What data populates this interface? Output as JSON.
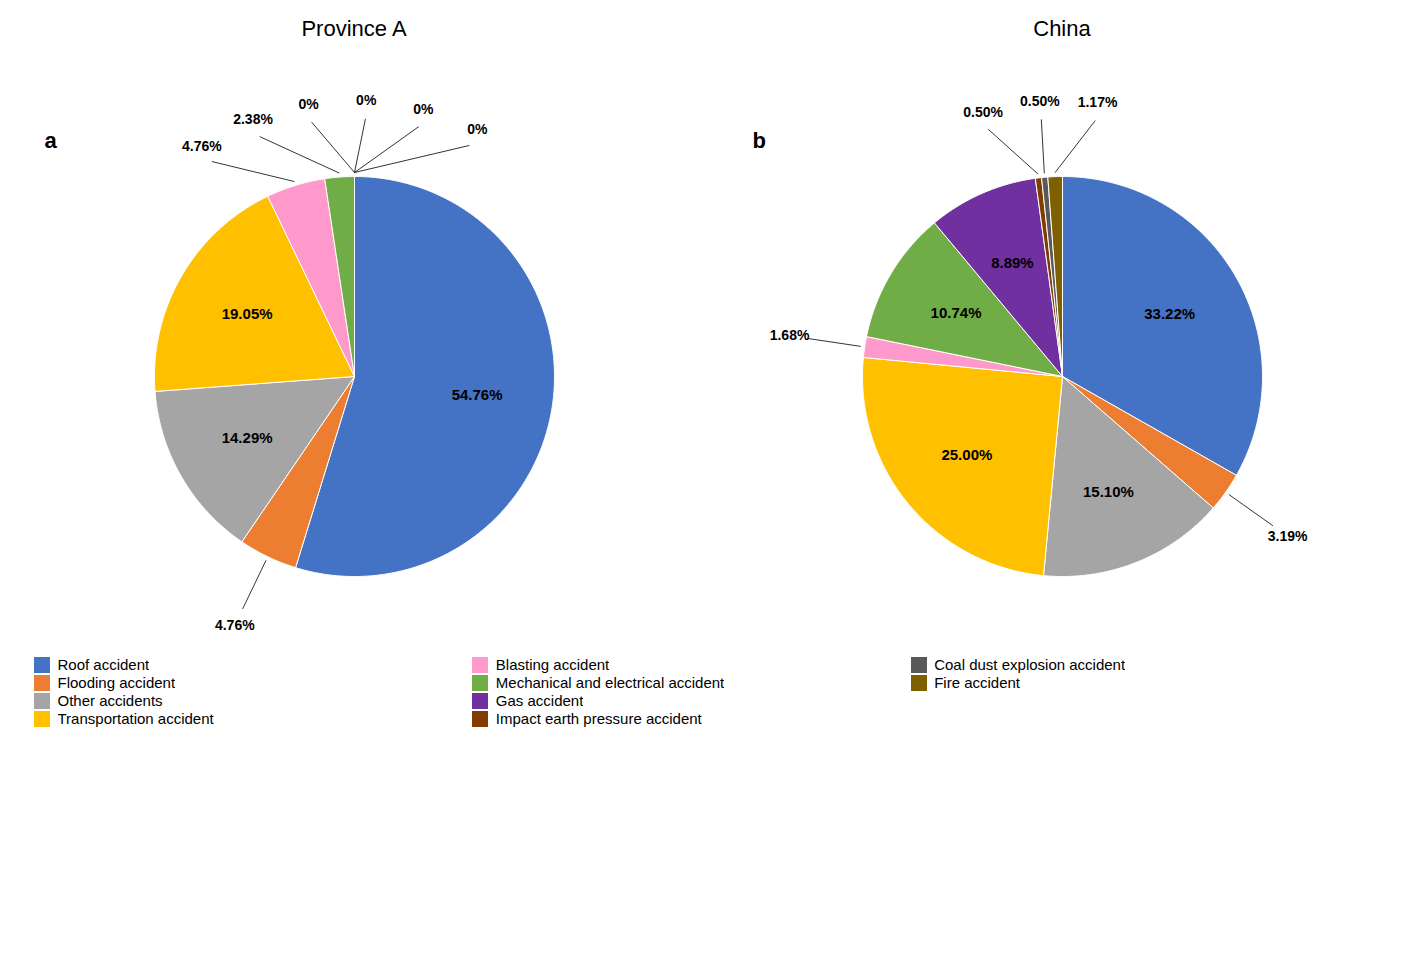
{
  "chart_data": [
    {
      "type": "pie",
      "title": "Province A",
      "annotations": [
        "a"
      ],
      "categories": [
        "Roof accident",
        "Flooding accident",
        "Other accidents",
        "Transportation accident",
        "Blasting accident",
        "Mechanical and electrical accident",
        "Gas accident",
        "Impact earth pressure accident",
        "Coal dust explosion accident",
        "Fire accident"
      ],
      "values": [
        54.76,
        4.76,
        14.29,
        19.05,
        4.76,
        2.38,
        0,
        0,
        0,
        0
      ],
      "value_labels": [
        "54.76%",
        "4.76%",
        "14.29%",
        "19.05%",
        "4.76%",
        "2.38%",
        "0%",
        "0%",
        "0%",
        "0%"
      ],
      "colors": [
        "#4472C4",
        "#ED7D31",
        "#A5A5A5",
        "#FFC000",
        "#FF99CC",
        "#70AD47",
        "#7030A0",
        "#833C00",
        "#595959",
        "#7F6000"
      ],
      "data_labels": true,
      "legend": "lower left"
    },
    {
      "type": "pie",
      "title": "China",
      "annotations": [
        "b"
      ],
      "categories": [
        "Roof accident",
        "Flooding accident",
        "Other accidents",
        "Transportation accident",
        "Blasting accident",
        "Mechanical and electrical accident",
        "Gas accident",
        "Impact earth pressure accident",
        "Coal dust explosion accident",
        "Fire accident"
      ],
      "values": [
        33.22,
        3.19,
        15.1,
        25.0,
        1.68,
        10.74,
        8.89,
        0.5,
        0.5,
        1.17
      ],
      "value_labels": [
        "33.22%",
        "3.19%",
        "15.10%",
        "25.00%",
        "1.68%",
        "10.74%",
        "8.89%",
        "0.50%",
        "0.50%",
        "1.17%"
      ],
      "colors": [
        "#4472C4",
        "#ED7D31",
        "#A5A5A5",
        "#FFC000",
        "#FF99CC",
        "#70AD47",
        "#7030A0",
        "#833C00",
        "#595959",
        "#7F6000"
      ],
      "data_labels": true,
      "legend": "lower left"
    }
  ]
}
